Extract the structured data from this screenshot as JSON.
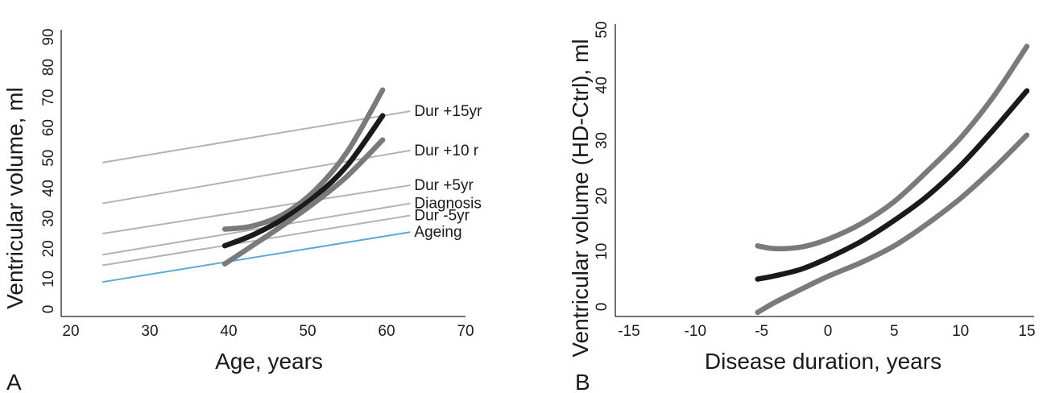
{
  "chart_data": [
    {
      "panel_label": "A",
      "type": "line",
      "xlabel": "Age, years",
      "ylabel": "Ventricular volume, ml",
      "xlim": [
        20,
        70
      ],
      "ylim": [
        0,
        90
      ],
      "xticks": [
        "20",
        "30",
        "40",
        "50",
        "60",
        "70"
      ],
      "yticks": [
        "0",
        "10",
        "20",
        "30",
        "40",
        "50",
        "60",
        "70",
        "80",
        "90"
      ],
      "grid": false,
      "colors": {
        "reference": "#b3b3b3",
        "ageing": "#5aaad6",
        "mean": "#1a1a1a",
        "ci": "#7a7a7a"
      },
      "reference_lines": [
        {
          "name": "Dur +15yr",
          "x": [
            24,
            63
          ],
          "y": [
            48.5,
            65.5
          ]
        },
        {
          "name": "Dur +10 r",
          "x": [
            24,
            63
          ],
          "y": [
            35,
            52.5
          ]
        },
        {
          "name": "Dur +5yr",
          "x": [
            24,
            63
          ],
          "y": [
            25,
            41
          ]
        },
        {
          "name": "Diagnosis",
          "x": [
            24,
            63
          ],
          "y": [
            18,
            35
          ]
        },
        {
          "name": "Dur -5yr",
          "x": [
            24,
            63
          ],
          "y": [
            14.5,
            31
          ]
        },
        {
          "name": "Ageing",
          "x": [
            24,
            63
          ],
          "y": [
            9,
            25.5
          ]
        }
      ],
      "series": [
        {
          "x": [
            39.5,
            43,
            47,
            51,
            55,
            59.5
          ],
          "y": [
            26.5,
            27.5,
            31.5,
            39.5,
            52,
            72.5
          ]
        },
        {
          "x": [
            39.5,
            43,
            47,
            51,
            55,
            59.5
          ],
          "y": [
            21,
            24.5,
            30,
            37.5,
            47.5,
            64
          ]
        },
        {
          "x": [
            39.5,
            43,
            47,
            51,
            55,
            59.5
          ],
          "y": [
            15,
            21,
            28,
            35.5,
            44,
            56
          ]
        }
      ]
    },
    {
      "panel_label": "B",
      "type": "line",
      "xlabel": "Disease duration, years",
      "ylabel": "Ventricular volume (HD-Ctrl), ml",
      "xlim": [
        -16,
        16
      ],
      "ylim": [
        -2,
        51
      ],
      "xticks": [
        "-15",
        "-10",
        "-5",
        "0",
        "5",
        "10",
        "15"
      ],
      "yticks": [
        "0",
        "10",
        "20",
        "30",
        "40",
        "50"
      ],
      "grid": false,
      "colors": {
        "mean": "#1a1a1a",
        "ci": "#7a7a7a"
      },
      "series": [
        {
          "x": [
            -5.3,
            -4,
            -2,
            0,
            2.5,
            5,
            7.5,
            10,
            12.5,
            15
          ],
          "y": [
            11,
            10.5,
            10.8,
            12.2,
            15,
            19,
            24.5,
            30.5,
            38,
            47
          ]
        },
        {
          "x": [
            -5.3,
            -4,
            -2,
            0,
            2.5,
            5,
            7.5,
            10,
            12.5,
            15
          ],
          "y": [
            5,
            5.6,
            6.8,
            8.8,
            11.8,
            15.6,
            20,
            25.5,
            32,
            39
          ]
        },
        {
          "x": [
            -5.3,
            -4,
            -2,
            0,
            2.5,
            5,
            7.5,
            10,
            12.5,
            15
          ],
          "y": [
            -1,
            0.8,
            3.2,
            5.5,
            8,
            11,
            15,
            19.6,
            25,
            31
          ]
        }
      ]
    }
  ]
}
